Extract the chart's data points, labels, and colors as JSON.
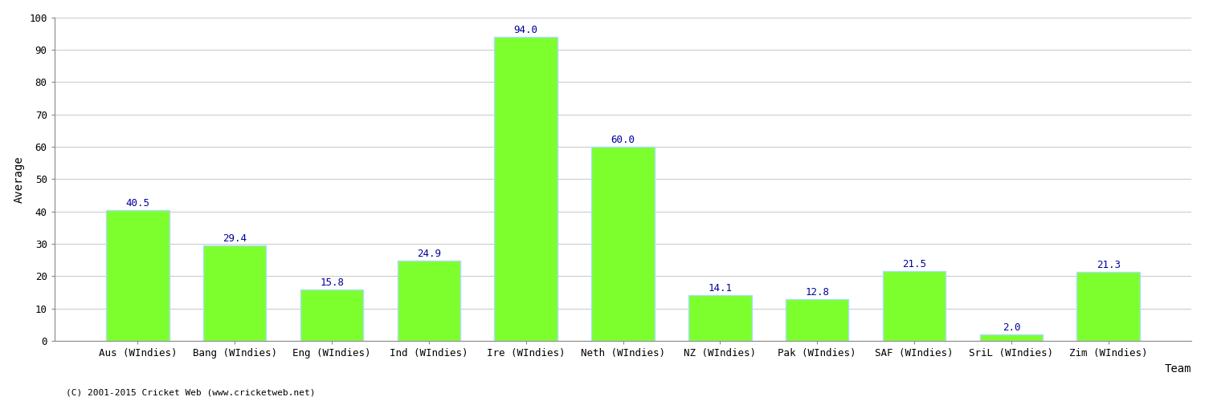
{
  "categories": [
    "Aus (WIndies)",
    "Bang (WIndies)",
    "Eng (WIndies)",
    "Ind (WIndies)",
    "Ire (WIndies)",
    "Neth (WIndies)",
    "NZ (WIndies)",
    "Pak (WIndies)",
    "SAF (WIndies)",
    "SriL (WIndies)",
    "Zim (WIndies)"
  ],
  "values": [
    40.5,
    29.4,
    15.8,
    24.9,
    94.0,
    60.0,
    14.1,
    12.8,
    21.5,
    2.0,
    21.3
  ],
  "bar_color": "#7dff2e",
  "bar_edge_color": "#aaddff",
  "value_color": "#000099",
  "ylabel": "Average",
  "xlabel": "Team",
  "ylim": [
    0,
    100
  ],
  "yticks": [
    0,
    10,
    20,
    30,
    40,
    50,
    60,
    70,
    80,
    90,
    100
  ],
  "grid_color": "#cccccc",
  "background_color": "#ffffff",
  "footer": "(C) 2001-2015 Cricket Web (www.cricketweb.net)",
  "value_fontsize": 9,
  "axis_label_fontsize": 10,
  "tick_label_fontsize": 9,
  "footer_fontsize": 8
}
